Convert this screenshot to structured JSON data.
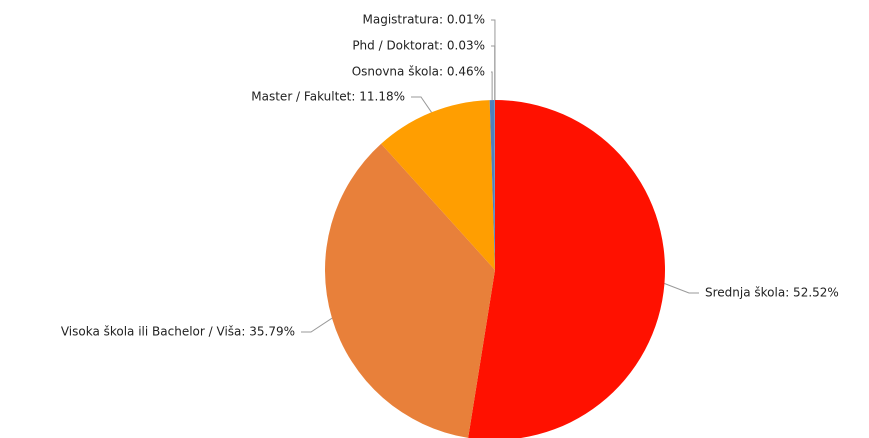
{
  "chart_data": {
    "type": "pie",
    "values": [
      52.52,
      35.79,
      11.18,
      0.46,
      0.03,
      0.01
    ],
    "value_labels": [
      "Srednja škola: 52.52%",
      "Visoka škola ili Bachelor / Viša: 35.79%",
      "Master / Fakultet: 11.18%",
      "Osnovna škola: 0.46%",
      "Phd / Doktorat: 0.03%",
      "Magistratura: 0.01%"
    ],
    "colors": [
      "#ff1100",
      "#e8803a",
      "#ff9e01",
      "#4f81bd",
      "#8fb0d8",
      "#2f5f9a"
    ]
  }
}
